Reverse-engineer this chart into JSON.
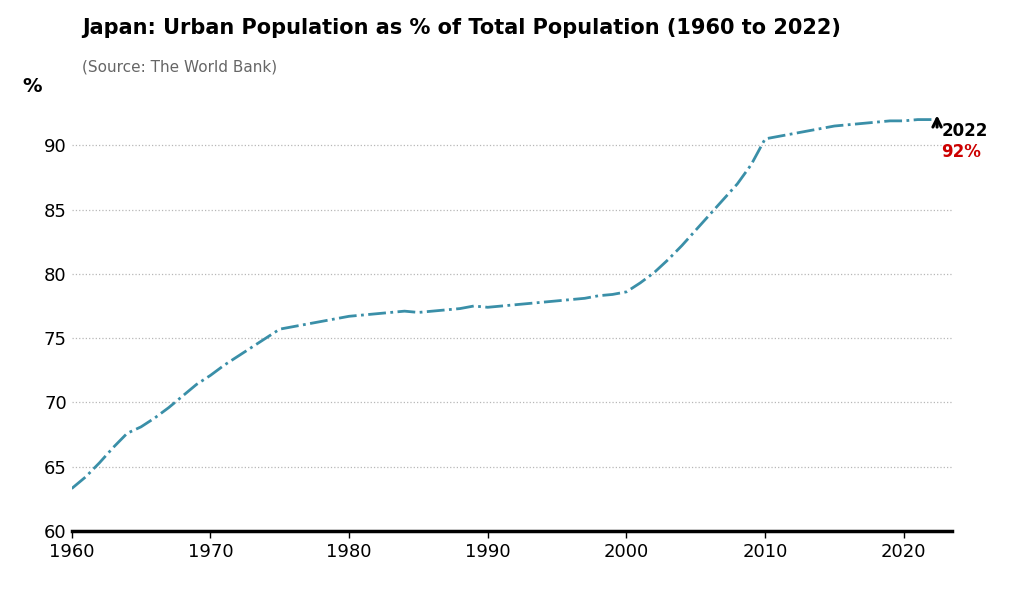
{
  "title": "Japan: Urban Population as % of Total Population (1960 to 2022)",
  "subtitle": "(Source: The World Bank)",
  "ylabel": "%",
  "xlim": [
    1960,
    2022
  ],
  "ylim": [
    60,
    93.5
  ],
  "yticks": [
    60,
    65,
    70,
    75,
    80,
    85,
    90
  ],
  "xticks": [
    1960,
    1970,
    1980,
    1990,
    2000,
    2010,
    2020
  ],
  "line_color": "#3a8fa8",
  "grid_color": "#b0b0b0",
  "background_color": "#ffffff",
  "annotation_year": "2022",
  "annotation_value": "92%",
  "annotation_color_year": "#000000",
  "annotation_color_value": "#cc0000",
  "data": {
    "1960": 63.3,
    "1961": 64.2,
    "1962": 65.3,
    "1963": 66.5,
    "1964": 67.6,
    "1965": 68.1,
    "1966": 68.8,
    "1967": 69.6,
    "1968": 70.5,
    "1969": 71.4,
    "1970": 72.1,
    "1971": 72.9,
    "1972": 73.6,
    "1973": 74.3,
    "1974": 75.0,
    "1975": 75.7,
    "1976": 75.9,
    "1977": 76.1,
    "1978": 76.3,
    "1979": 76.5,
    "1980": 76.7,
    "1981": 76.8,
    "1982": 76.9,
    "1983": 77.0,
    "1984": 77.1,
    "1985": 77.0,
    "1986": 77.1,
    "1987": 77.2,
    "1988": 77.3,
    "1989": 77.5,
    "1990": 77.4,
    "1991": 77.5,
    "1992": 77.6,
    "1993": 77.7,
    "1994": 77.8,
    "1995": 77.9,
    "1996": 78.0,
    "1997": 78.1,
    "1998": 78.3,
    "1999": 78.4,
    "2000": 78.6,
    "2001": 79.3,
    "2002": 80.1,
    "2003": 81.1,
    "2004": 82.2,
    "2005": 83.4,
    "2006": 84.6,
    "2007": 85.8,
    "2008": 87.0,
    "2009": 88.5,
    "2010": 90.5,
    "2011": 90.7,
    "2012": 90.9,
    "2013": 91.1,
    "2014": 91.3,
    "2015": 91.5,
    "2016": 91.6,
    "2017": 91.7,
    "2018": 91.8,
    "2019": 91.9,
    "2020": 91.9,
    "2021": 92.0,
    "2022": 92.0
  }
}
